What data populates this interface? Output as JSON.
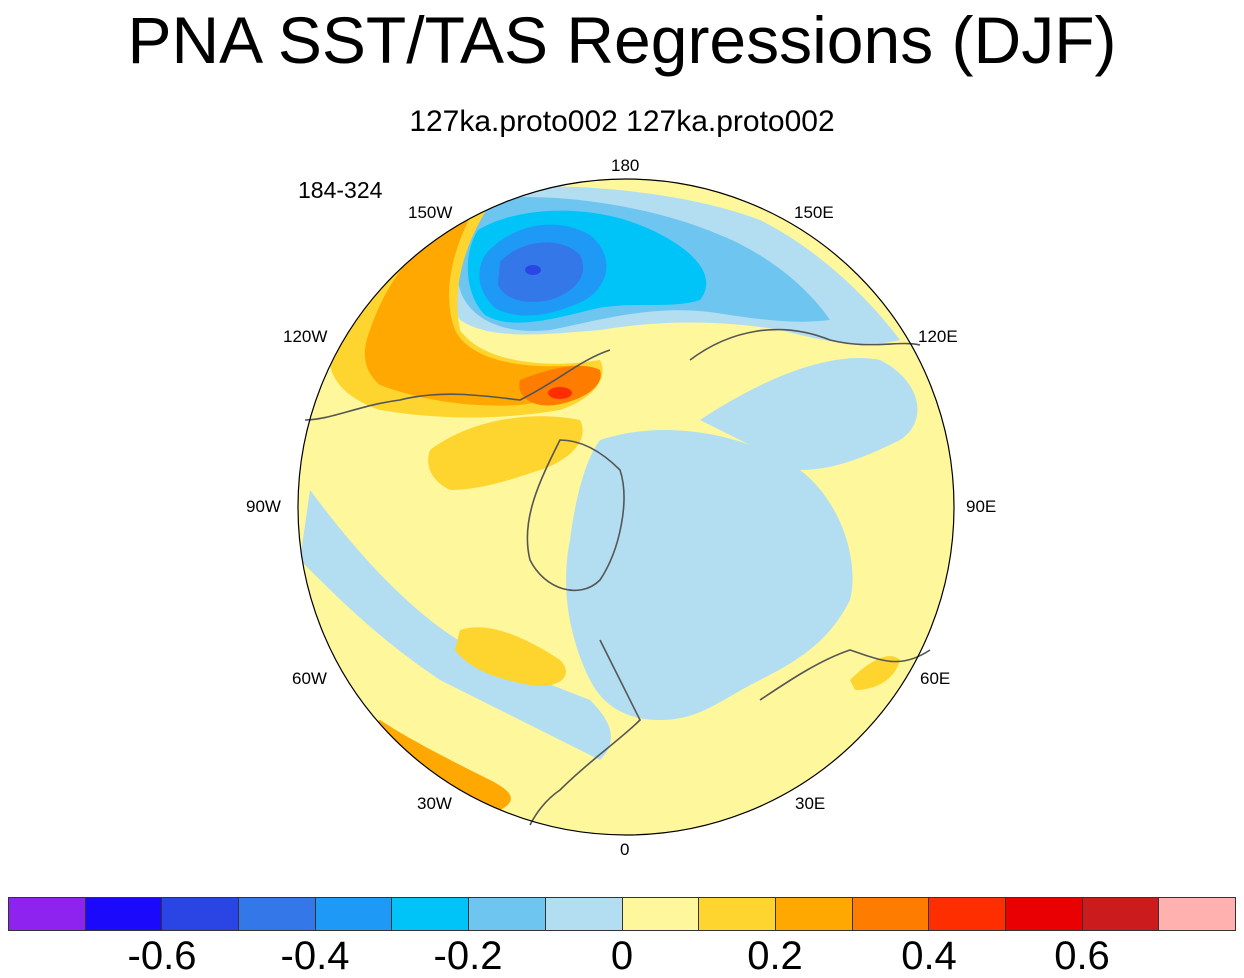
{
  "title": "PNA SST/TAS Regressions (DJF)",
  "subtitle": "127ka.proto002  127ka.proto002",
  "years_label": "184-324",
  "longitude_labels": {
    "lon_180": "180",
    "lon_150e": "150E",
    "lon_120e": "120E",
    "lon_90e": "90E",
    "lon_60e": "60E",
    "lon_30e": "30E",
    "lon_0": "0",
    "lon_30w": "30W",
    "lon_60w": "60W",
    "lon_90w": "90W",
    "lon_120w": "120W",
    "lon_150w": "150W"
  },
  "colorbar": {
    "colors": [
      "#8e22ef",
      "#1a09fb",
      "#2b44e4",
      "#3377e8",
      "#1e9af6",
      "#00c4f8",
      "#6ec6f0",
      "#b3def2",
      "#fef79b",
      "#fed42e",
      "#fea801",
      "#fe7c00",
      "#fe2e00",
      "#e80003",
      "#cc1b1c",
      "#feb1af"
    ],
    "tick_labels": [
      "-0.6",
      "-0.4",
      "-0.2",
      "0",
      "0.2",
      "0.4",
      "0.6"
    ]
  },
  "map_legend_colors": {
    "land_light": "#fef79b",
    "ocean_light": "#b3def2",
    "negative_mid": "#6ec6f0",
    "negative_strong": "#00c4f8",
    "negative_stronger": "#1e9af6",
    "negative_core": "#3377e8",
    "positive_mid": "#fed42e",
    "positive_strong": "#fea801",
    "positive_core": "#fe7c00",
    "positive_peak": "#fe2e00"
  }
}
